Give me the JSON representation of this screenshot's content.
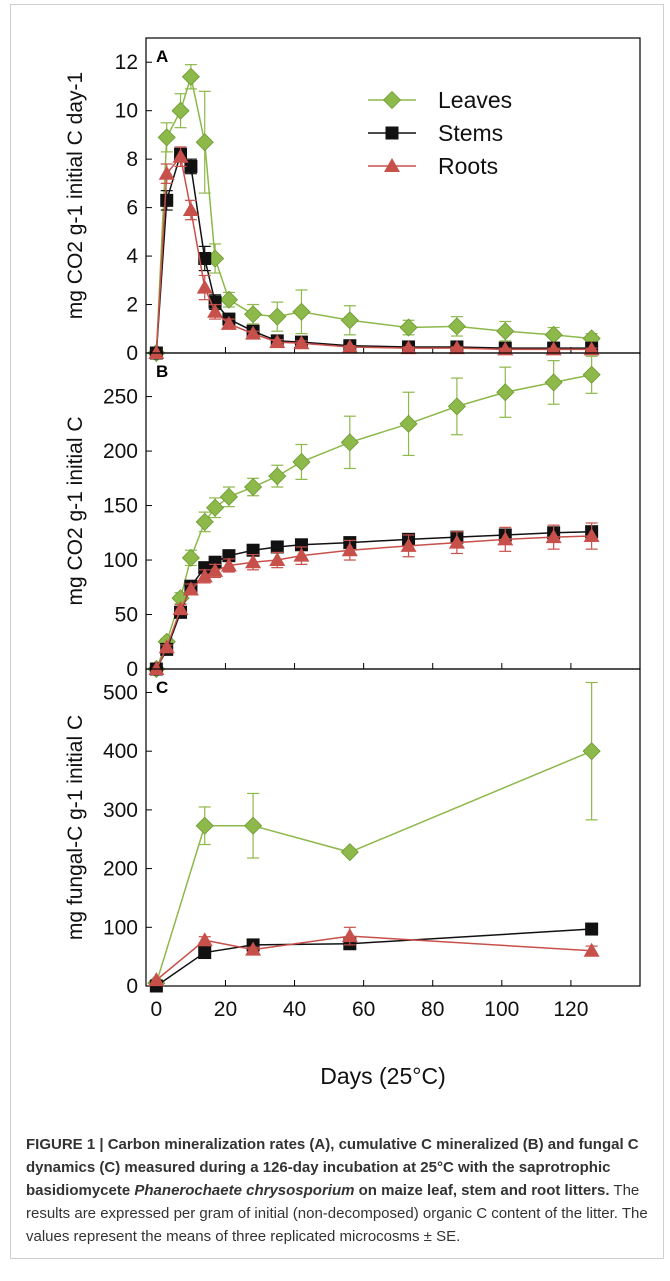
{
  "chart_data": [
    {
      "type": "line",
      "panel_label": "A",
      "ylabel": "mg CO2 g-1 initial C day-1",
      "ylim": [
        0,
        13
      ],
      "yticks": [
        0,
        2,
        4,
        6,
        8,
        10,
        12
      ],
      "xlim": [
        -3,
        140
      ],
      "legend": {
        "placement": "top-right",
        "entries": [
          "Leaves",
          "Stems",
          "Roots"
        ]
      },
      "series": [
        {
          "name": "Leaves",
          "color": "#8db84a",
          "marker": "diamond",
          "x": [
            0,
            3,
            7,
            10,
            14,
            17,
            21,
            28,
            35,
            42,
            56,
            73,
            87,
            101,
            115,
            126
          ],
          "y": [
            0,
            8.9,
            10.0,
            11.4,
            8.7,
            3.9,
            2.2,
            1.6,
            1.5,
            1.7,
            1.35,
            1.05,
            1.1,
            0.9,
            0.75,
            0.6
          ],
          "err": [
            0,
            0.6,
            0.7,
            0.5,
            2.1,
            0.6,
            0.3,
            0.4,
            0.6,
            0.9,
            0.6,
            0.3,
            0.4,
            0.4,
            0.3,
            0.2
          ]
        },
        {
          "name": "Stems",
          "color": "#111111",
          "marker": "square",
          "x": [
            0,
            3,
            7,
            10,
            14,
            17,
            21,
            28,
            35,
            42,
            56,
            73,
            87,
            101,
            115,
            126
          ],
          "y": [
            0,
            6.3,
            8.2,
            7.7,
            3.9,
            2.1,
            1.4,
            0.9,
            0.5,
            0.45,
            0.3,
            0.25,
            0.25,
            0.2,
            0.2,
            0.2
          ],
          "err": [
            0,
            0.4,
            0.3,
            0.3,
            0.5,
            0.3,
            0.2,
            0.2,
            0.1,
            0.1,
            0.1,
            0.05,
            0.05,
            0.05,
            0.05,
            0.05
          ]
        },
        {
          "name": "Roots",
          "color": "#c8504b",
          "marker": "triangle",
          "x": [
            0,
            3,
            7,
            10,
            14,
            17,
            21,
            28,
            35,
            42,
            56,
            73,
            87,
            101,
            115,
            126
          ],
          "y": [
            0,
            7.4,
            8.1,
            5.9,
            2.7,
            1.7,
            1.2,
            0.8,
            0.45,
            0.4,
            0.25,
            0.2,
            0.2,
            0.15,
            0.15,
            0.15
          ],
          "err": [
            0,
            0.4,
            0.4,
            0.4,
            0.5,
            0.3,
            0.2,
            0.1,
            0.1,
            0.1,
            0.05,
            0.05,
            0.05,
            0.05,
            0.05,
            0.05
          ]
        }
      ]
    },
    {
      "type": "line",
      "panel_label": "B",
      "ylabel": "mg CO2 g-1 initial C",
      "ylim": [
        0,
        290
      ],
      "yticks": [
        0,
        50,
        100,
        150,
        200,
        250
      ],
      "xlim": [
        -3,
        140
      ],
      "series": [
        {
          "name": "Leaves",
          "color": "#8db84a",
          "marker": "diamond",
          "x": [
            0,
            3,
            7,
            10,
            14,
            17,
            21,
            28,
            35,
            42,
            56,
            73,
            87,
            101,
            115,
            126
          ],
          "y": [
            0,
            25,
            65,
            102,
            135,
            148,
            158,
            167,
            177,
            190,
            208,
            225,
            241,
            254,
            263,
            270
          ],
          "err": [
            0,
            3,
            5,
            7,
            9,
            9,
            9,
            8,
            10,
            16,
            24,
            29,
            26,
            23,
            20,
            17
          ]
        },
        {
          "name": "Stems",
          "color": "#111111",
          "marker": "square",
          "x": [
            0,
            3,
            7,
            10,
            14,
            17,
            21,
            28,
            35,
            42,
            56,
            73,
            87,
            101,
            115,
            126
          ],
          "y": [
            0,
            18,
            52,
            76,
            93,
            98,
            104,
            109,
            112,
            114,
            116,
            119,
            121,
            123,
            125,
            126
          ],
          "err": [
            0,
            2,
            4,
            5,
            5,
            5,
            5,
            5,
            5,
            5,
            5,
            5,
            5,
            5,
            5,
            5
          ]
        },
        {
          "name": "Roots",
          "color": "#c8504b",
          "marker": "triangle",
          "x": [
            0,
            3,
            7,
            10,
            14,
            17,
            21,
            28,
            35,
            42,
            56,
            73,
            87,
            101,
            115,
            126
          ],
          "y": [
            0,
            20,
            55,
            73,
            85,
            90,
            95,
            98,
            100,
            104,
            109,
            113,
            116,
            119,
            121,
            122
          ],
          "err": [
            0,
            2,
            4,
            5,
            6,
            6,
            6,
            7,
            7,
            8,
            9,
            10,
            10,
            11,
            11,
            12
          ]
        }
      ]
    },
    {
      "type": "line",
      "panel_label": "C",
      "ylabel": "mg fungal-C g-1 initial C",
      "ylim": [
        0,
        540
      ],
      "yticks": [
        0,
        100,
        200,
        300,
        400,
        500
      ],
      "xlim": [
        -3,
        140
      ],
      "xticks": [
        0,
        20,
        40,
        60,
        80,
        100,
        120
      ],
      "xlabel": "Days (25°C)",
      "series": [
        {
          "name": "Leaves",
          "color": "#8db84a",
          "marker": "diamond",
          "x": [
            0,
            14,
            28,
            56,
            126
          ],
          "y": [
            5,
            273,
            273,
            228,
            400
          ],
          "err": [
            0,
            32,
            55,
            4,
            117
          ]
        },
        {
          "name": "Stems",
          "color": "#111111",
          "marker": "square",
          "x": [
            0,
            14,
            28,
            56,
            126
          ],
          "y": [
            0,
            57,
            70,
            72,
            97
          ],
          "err": [
            0,
            4,
            3,
            5,
            4
          ]
        },
        {
          "name": "Roots",
          "color": "#c8504b",
          "marker": "triangle",
          "x": [
            0,
            14,
            28,
            56,
            126
          ],
          "y": [
            10,
            78,
            62,
            85,
            60
          ],
          "err": [
            0,
            6,
            4,
            15,
            8
          ]
        }
      ]
    }
  ],
  "caption": {
    "bold": "FIGURE 1 | Carbon mineralization rates (A), cumulative C mineralized (B) and fungal C dynamics (C) measured during a 126-day incubation at 25°C with the saprotrophic basidiomycete ",
    "bold_italic": "Phanerochaete chrysosporium",
    "bold_end": " on maize leaf, stem and root litters.",
    "normal": " The results are expressed per gram of initial (non-decomposed) organic C content of the litter. The values represent the means of three replicated microcosms ± SE."
  }
}
